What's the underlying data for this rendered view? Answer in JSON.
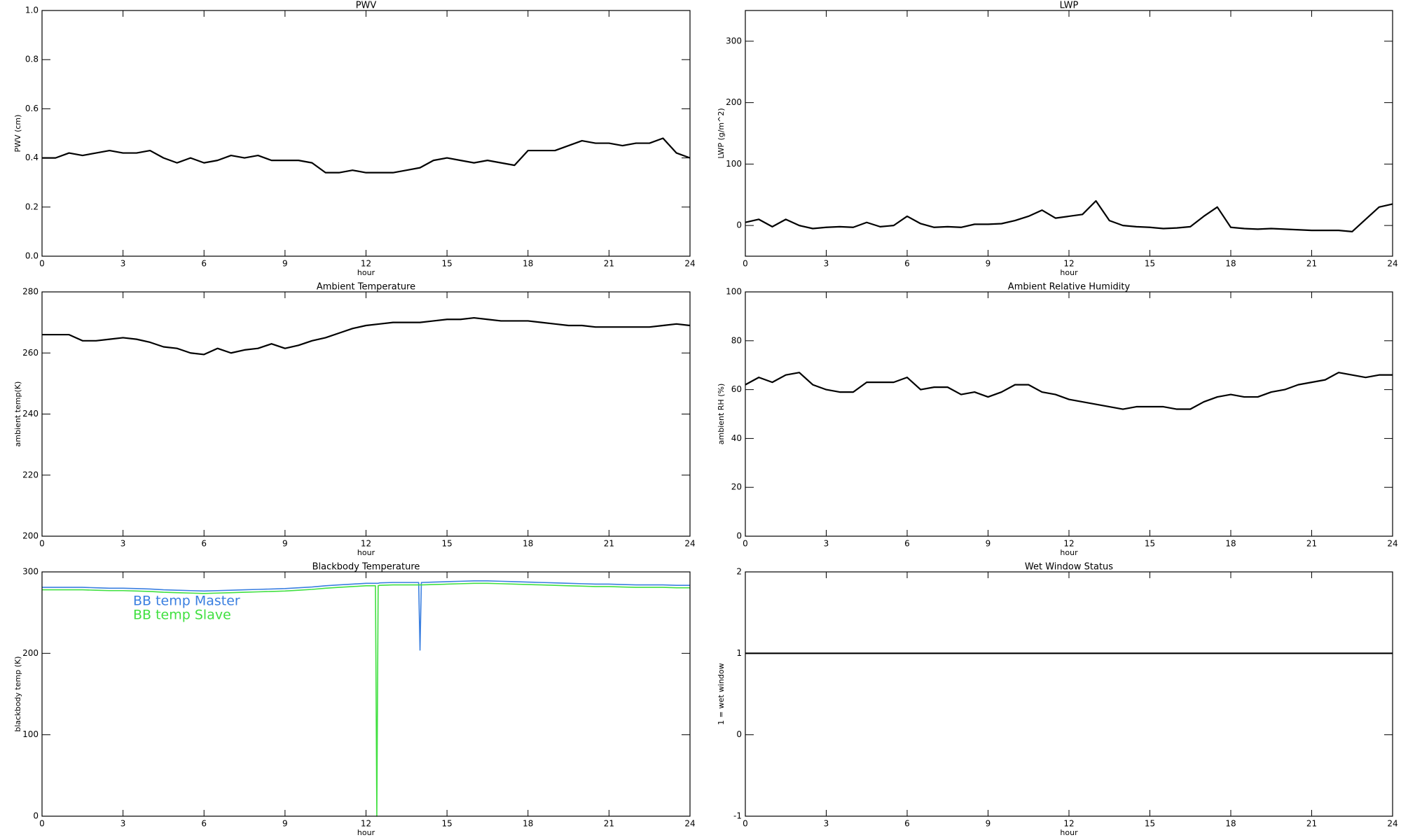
{
  "chart_data": [
    {
      "type": "line",
      "title": "PWV",
      "xlabel": "hour",
      "ylabel": "PWV (cm)",
      "x": [
        0,
        0.5,
        1,
        1.5,
        2,
        2.5,
        3,
        3.5,
        4,
        4.5,
        5,
        5.5,
        6,
        6.5,
        7,
        7.5,
        8,
        8.5,
        9,
        9.5,
        10,
        10.5,
        11,
        11.5,
        12,
        12.5,
        13,
        13.5,
        14,
        14.5,
        15,
        15.5,
        16,
        16.5,
        17,
        17.5,
        18,
        18.5,
        19,
        19.5,
        20,
        20.5,
        21,
        21.5,
        22,
        22.5,
        23,
        23.5,
        24
      ],
      "xlim": [
        0,
        24
      ],
      "xticks": [
        0,
        3,
        6,
        9,
        12,
        15,
        18,
        21,
        24
      ],
      "ylim": [
        0,
        1
      ],
      "yticks": [
        {
          "value": 0,
          "label": "0.0"
        },
        {
          "value": 0.2,
          "label": "0.2"
        },
        {
          "value": 0.4,
          "label": "0.4"
        },
        {
          "value": 0.6,
          "label": "0.6"
        },
        {
          "value": 0.8,
          "label": "0.8"
        },
        {
          "value": 1,
          "label": "1.0"
        }
      ],
      "series": [
        {
          "color": "#000000",
          "values": [
            0.4,
            0.4,
            0.42,
            0.41,
            0.42,
            0.43,
            0.42,
            0.42,
            0.43,
            0.4,
            0.38,
            0.4,
            0.38,
            0.39,
            0.41,
            0.4,
            0.41,
            0.39,
            0.39,
            0.39,
            0.38,
            0.34,
            0.34,
            0.35,
            0.34,
            0.34,
            0.34,
            0.35,
            0.36,
            0.39,
            0.4,
            0.39,
            0.38,
            0.39,
            0.38,
            0.37,
            0.43,
            0.43,
            0.43,
            0.45,
            0.47,
            0.46,
            0.46,
            0.45,
            0.46,
            0.46,
            0.48,
            0.42,
            0.4
          ]
        }
      ]
    },
    {
      "type": "line",
      "title": "LWP",
      "xlabel": "hour",
      "ylabel": "LWP (g/m^2)",
      "x": [
        0,
        0.5,
        1,
        1.5,
        2,
        2.5,
        3,
        3.5,
        4,
        4.5,
        5,
        5.5,
        6,
        6.5,
        7,
        7.5,
        8,
        8.5,
        9,
        9.5,
        10,
        10.5,
        11,
        11.5,
        12,
        12.5,
        13,
        13.5,
        14,
        14.5,
        15,
        15.5,
        16,
        16.5,
        17,
        17.5,
        18,
        18.5,
        19,
        19.5,
        20,
        20.5,
        21,
        21.5,
        22,
        22.5,
        23,
        23.5,
        24
      ],
      "xlim": [
        0,
        24
      ],
      "xticks": [
        0,
        3,
        6,
        9,
        12,
        15,
        18,
        21,
        24
      ],
      "ylim": [
        -50,
        350
      ],
      "yticks": [
        0,
        100,
        200,
        300
      ],
      "series": [
        {
          "color": "#000000",
          "values": [
            5,
            10,
            -2,
            10,
            0,
            -5,
            -3,
            -2,
            -3,
            5,
            -2,
            0,
            15,
            3,
            -3,
            -2,
            -3,
            2,
            2,
            3,
            8,
            15,
            25,
            12,
            15,
            18,
            40,
            8,
            0,
            -2,
            -3,
            -5,
            -4,
            -2,
            15,
            30,
            -3,
            -5,
            -6,
            -5,
            -6,
            -7,
            -8,
            -8,
            -8,
            -10,
            10,
            30,
            35
          ]
        }
      ]
    },
    {
      "type": "line",
      "title": "Ambient Temperature",
      "xlabel": "hour",
      "ylabel": "ambient temp(K)",
      "x": [
        0,
        0.5,
        1,
        1.5,
        2,
        2.5,
        3,
        3.5,
        4,
        4.5,
        5,
        5.5,
        6,
        6.5,
        7,
        7.5,
        8,
        8.5,
        9,
        9.5,
        10,
        10.5,
        11,
        11.5,
        12,
        12.5,
        13,
        13.5,
        14,
        14.5,
        15,
        15.5,
        16,
        16.5,
        17,
        17.5,
        18,
        18.5,
        19,
        19.5,
        20,
        20.5,
        21,
        21.5,
        22,
        22.5,
        23,
        23.5,
        24
      ],
      "xlim": [
        0,
        24
      ],
      "xticks": [
        0,
        3,
        6,
        9,
        12,
        15,
        18,
        21,
        24
      ],
      "ylim": [
        200,
        280
      ],
      "yticks": [
        200,
        220,
        240,
        260,
        280
      ],
      "series": [
        {
          "color": "#000000",
          "values": [
            266,
            266,
            266,
            264,
            264,
            264.5,
            265,
            264.5,
            263.5,
            262,
            261.5,
            260,
            259.5,
            261.5,
            260,
            261,
            261.5,
            263,
            261.5,
            262.5,
            264,
            265,
            266.5,
            268,
            269,
            269.5,
            270,
            270,
            270,
            270.5,
            271,
            271,
            271.5,
            271,
            270.5,
            270.5,
            270.5,
            270,
            269.5,
            269,
            269,
            268.5,
            268.5,
            268.5,
            268.5,
            268.5,
            269,
            269.5,
            269
          ]
        }
      ]
    },
    {
      "type": "line",
      "title": "Ambient Relative Humidity",
      "xlabel": "hour",
      "ylabel": "ambient RH (%)",
      "x": [
        0,
        0.5,
        1,
        1.5,
        2,
        2.5,
        3,
        3.5,
        4,
        4.5,
        5,
        5.5,
        6,
        6.5,
        7,
        7.5,
        8,
        8.5,
        9,
        9.5,
        10,
        10.5,
        11,
        11.5,
        12,
        12.5,
        13,
        13.5,
        14,
        14.5,
        15,
        15.5,
        16,
        16.5,
        17,
        17.5,
        18,
        18.5,
        19,
        19.5,
        20,
        20.5,
        21,
        21.5,
        22,
        22.5,
        23,
        23.5,
        24
      ],
      "xlim": [
        0,
        24
      ],
      "xticks": [
        0,
        3,
        6,
        9,
        12,
        15,
        18,
        21,
        24
      ],
      "ylim": [
        0,
        100
      ],
      "yticks": [
        0,
        20,
        40,
        60,
        80,
        100
      ],
      "series": [
        {
          "color": "#000000",
          "values": [
            62,
            65,
            63,
            66,
            67,
            62,
            60,
            59,
            59,
            63,
            63,
            63,
            65,
            60,
            61,
            61,
            58,
            59,
            57,
            59,
            62,
            62,
            59,
            58,
            56,
            55,
            54,
            53,
            52,
            53,
            53,
            53,
            52,
            52,
            55,
            57,
            58,
            57,
            57,
            59,
            60,
            62,
            63,
            64,
            67,
            66,
            65,
            66,
            66
          ]
        }
      ]
    },
    {
      "type": "line",
      "title": "Blackbody Temperature",
      "xlabel": "hour",
      "ylabel": "blackbody temp (K)",
      "x": [
        0,
        0.5,
        1,
        1.5,
        2,
        2.5,
        3,
        3.5,
        4,
        4.5,
        5,
        5.5,
        6,
        6.5,
        7,
        7.5,
        8,
        8.5,
        9,
        9.5,
        10,
        10.5,
        11,
        11.5,
        12,
        12.35,
        12.4,
        12.45,
        12.5,
        13,
        13.5,
        13.95,
        14,
        14.05,
        14.5,
        15,
        15.5,
        16,
        16.5,
        17,
        17.5,
        18,
        18.5,
        19,
        19.5,
        20,
        20.5,
        21,
        21.5,
        22,
        22.5,
        23,
        23.5,
        24
      ],
      "xlim": [
        0,
        24
      ],
      "xticks": [
        0,
        3,
        6,
        9,
        12,
        15,
        18,
        21,
        24
      ],
      "ylim": [
        0,
        300
      ],
      "yticks": [
        0,
        100,
        200,
        300
      ],
      "legend": "upper left",
      "series": [
        {
          "name": "BB temp Master",
          "color": "#3a7fe0",
          "values": [
            281,
            281,
            281,
            281,
            280.5,
            280,
            280,
            279.5,
            279,
            278,
            277.5,
            277,
            276.5,
            277,
            277.5,
            278,
            278.5,
            279,
            279.5,
            280.5,
            281.5,
            283,
            284,
            285,
            286,
            286,
            286,
            286,
            286.5,
            287,
            287,
            287,
            204,
            287,
            287.5,
            288,
            288.5,
            289,
            289,
            288.5,
            288,
            287.5,
            287,
            286.5,
            286,
            285.5,
            285,
            285,
            284.5,
            284,
            284,
            284,
            283.5,
            283.5
          ]
        },
        {
          "name": "BB temp Slave",
          "color": "#40e040",
          "values": [
            278,
            278,
            278,
            278,
            277.5,
            277,
            277,
            276.5,
            276,
            275,
            274.5,
            274,
            273.5,
            274,
            274.5,
            275,
            275.5,
            276,
            276.5,
            277.5,
            278.5,
            280,
            281,
            282,
            283,
            283,
            0,
            283,
            283.5,
            284,
            284,
            284,
            284,
            284,
            284.5,
            285,
            285.5,
            286,
            286,
            285.5,
            285,
            284.5,
            284,
            283.5,
            283,
            282.5,
            282,
            282,
            281.5,
            281,
            281,
            281,
            280.5,
            280.5
          ]
        }
      ]
    },
    {
      "type": "line",
      "title": "Wet Window Status",
      "xlabel": "hour",
      "ylabel": "1 = wet window",
      "x": [
        0,
        24
      ],
      "xlim": [
        0,
        24
      ],
      "xticks": [
        0,
        3,
        6,
        9,
        12,
        15,
        18,
        21,
        24
      ],
      "ylim": [
        -1,
        2
      ],
      "yticks": [
        -1,
        0,
        1,
        2
      ],
      "series": [
        {
          "color": "#000000",
          "values": [
            1,
            1
          ]
        }
      ]
    }
  ]
}
